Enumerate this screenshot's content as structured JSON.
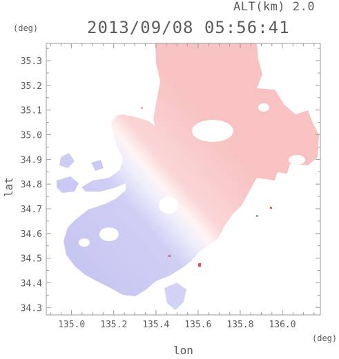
{
  "header": {
    "altitude_label": "ALT(km) 2.0",
    "timestamp": "2013/09/08 05:56:41"
  },
  "axes": {
    "y_unit": "(deg)",
    "x_unit": "(deg)",
    "y_label": "lat",
    "x_label": "lon",
    "x_ticks": [
      "135.0",
      "135.2",
      "135.4",
      "135.6",
      "135.8",
      "136.0"
    ],
    "y_ticks": [
      "34.3",
      "34.4",
      "34.5",
      "34.6",
      "34.7",
      "34.8",
      "34.9",
      "35.0",
      "35.1",
      "35.2",
      "35.3"
    ]
  },
  "map": {
    "type": "radar-doppler-velocity",
    "lon_range": [
      134.88,
      136.18
    ],
    "lat_range": [
      34.27,
      35.37
    ],
    "colors": {
      "approaching": "#c9c9f4",
      "receding": "#f9c4c4",
      "neutral": "#ffffff",
      "frame": "#9a9a9a",
      "text": "#5a5a5a"
    }
  }
}
